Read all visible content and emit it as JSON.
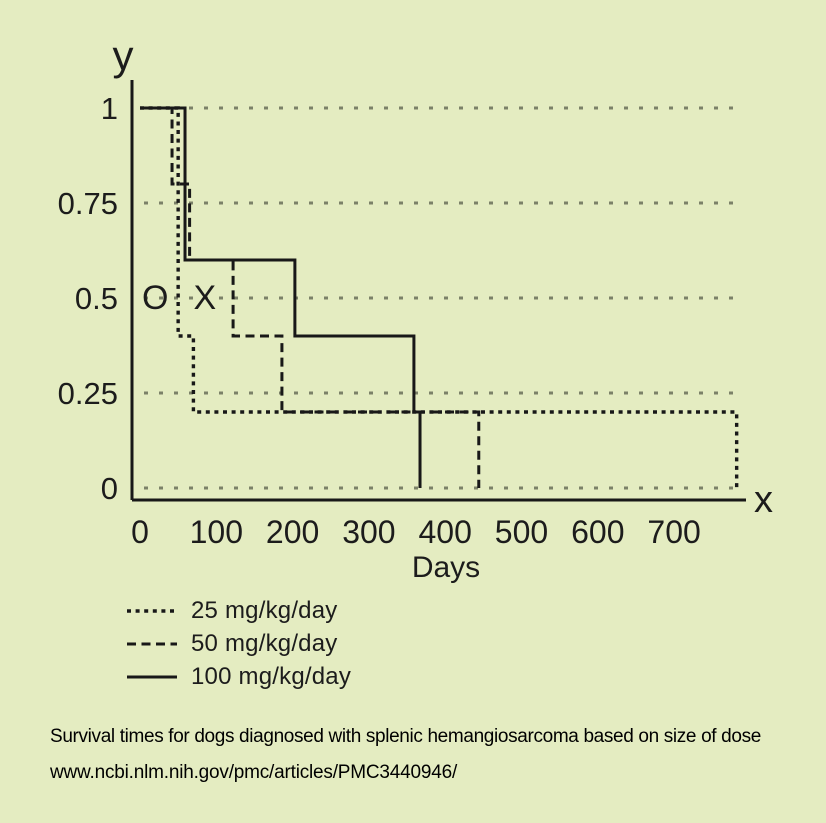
{
  "colors": {
    "background": "#e4ecc1",
    "line": "#181818",
    "grid": "#7b8168",
    "text": "#1c1c1c"
  },
  "chart_data": {
    "type": "line",
    "step": true,
    "title": "",
    "xlabel": "Days",
    "ylabel": "",
    "x_axis_letter": "x",
    "y_axis_letter": "y",
    "xlim": [
      0,
      795
    ],
    "ylim": [
      0,
      1
    ],
    "grid": "horizontal-dotted",
    "legend_position": "bottom-left",
    "xticks": [
      0,
      100,
      200,
      300,
      400,
      500,
      600,
      700
    ],
    "yticks": [
      0,
      0.25,
      0.5,
      0.75,
      1
    ],
    "ytick_labels": [
      "0",
      "0.25",
      "0.5",
      "0.75",
      "1"
    ],
    "series": [
      {
        "name": "25 mg/kg/day",
        "style": "dotted",
        "points": [
          [
            0,
            1
          ],
          [
            50,
            1
          ],
          [
            50,
            0.4
          ],
          [
            70,
            0.4
          ],
          [
            70,
            0.2
          ],
          [
            782,
            0.2
          ],
          [
            782,
            0
          ]
        ]
      },
      {
        "name": "50 mg/kg/day",
        "style": "dashed",
        "points": [
          [
            0,
            1
          ],
          [
            42,
            1
          ],
          [
            42,
            0.8
          ],
          [
            65,
            0.8
          ],
          [
            65,
            0.6
          ],
          [
            122,
            0.6
          ],
          [
            122,
            0.4
          ],
          [
            186,
            0.4
          ],
          [
            186,
            0.2
          ],
          [
            444,
            0.2
          ],
          [
            444,
            0
          ]
        ]
      },
      {
        "name": "100 mg/kg/day",
        "style": "solid",
        "points": [
          [
            0,
            1
          ],
          [
            59,
            1
          ],
          [
            59,
            0.6
          ],
          [
            203,
            0.6
          ],
          [
            203,
            0.4
          ],
          [
            359,
            0.4
          ],
          [
            359,
            0.2
          ],
          [
            367,
            0.2
          ],
          [
            367,
            0
          ]
        ]
      }
    ],
    "annotations": [
      {
        "text": "O",
        "x": 20,
        "y": 0.5
      },
      {
        "text": "X",
        "x": 85,
        "y": 0.5
      }
    ]
  },
  "caption": {
    "line1": "Survival times for dogs diagnosed with splenic hemangiosarcoma based on size of dose",
    "line2": "www.ncbi.nlm.nih.gov/pmc/articles/PMC3440946/"
  }
}
